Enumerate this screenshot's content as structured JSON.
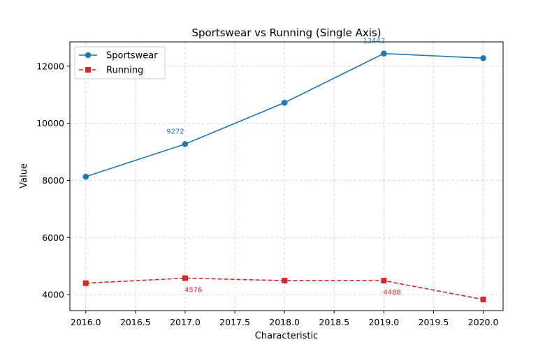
{
  "chart_data": {
    "type": "line",
    "title": "Sportswear vs Running (Single Axis)",
    "xlabel": "Characteristic",
    "ylabel": "Value",
    "xlim": [
      2015.84,
      2020.2
    ],
    "ylim": [
      3440,
      12850
    ],
    "xticks": [
      2016.0,
      2016.5,
      2017.0,
      2017.5,
      2018.0,
      2018.5,
      2019.0,
      2019.5,
      2020.0
    ],
    "xtick_labels": [
      "2016.0",
      "2016.5",
      "2017.0",
      "2017.5",
      "2018.0",
      "2018.5",
      "2019.0",
      "2019.5",
      "2020.0"
    ],
    "yticks": [
      4000,
      6000,
      8000,
      10000,
      12000
    ],
    "ytick_labels": [
      "4000",
      "6000",
      "8000",
      "10000",
      "12000"
    ],
    "grid": true,
    "legend_position": "top-left",
    "x": [
      2016,
      2017,
      2018,
      2019,
      2020
    ],
    "series": [
      {
        "name": "Sportswear",
        "values": [
          8130,
          9272,
          10720,
          12442,
          12280
        ],
        "color": "#1f77b4",
        "marker": "circle",
        "linestyle": "solid"
      },
      {
        "name": "Running",
        "values": [
          4400,
          4576,
          4490,
          4488,
          3830
        ],
        "color": "#d62728",
        "marker": "square",
        "linestyle": "dashed"
      }
    ],
    "annotations": [
      {
        "text": "9272",
        "x": 2017,
        "y": 9272,
        "series": 0,
        "placement": "above-left"
      },
      {
        "text": "12442",
        "x": 2019,
        "y": 12442,
        "series": 0,
        "placement": "above-left"
      },
      {
        "text": "4576",
        "x": 2017,
        "y": 4576,
        "series": 1,
        "placement": "below-right"
      },
      {
        "text": "4488",
        "x": 2019,
        "y": 4488,
        "series": 1,
        "placement": "below-right"
      }
    ]
  }
}
